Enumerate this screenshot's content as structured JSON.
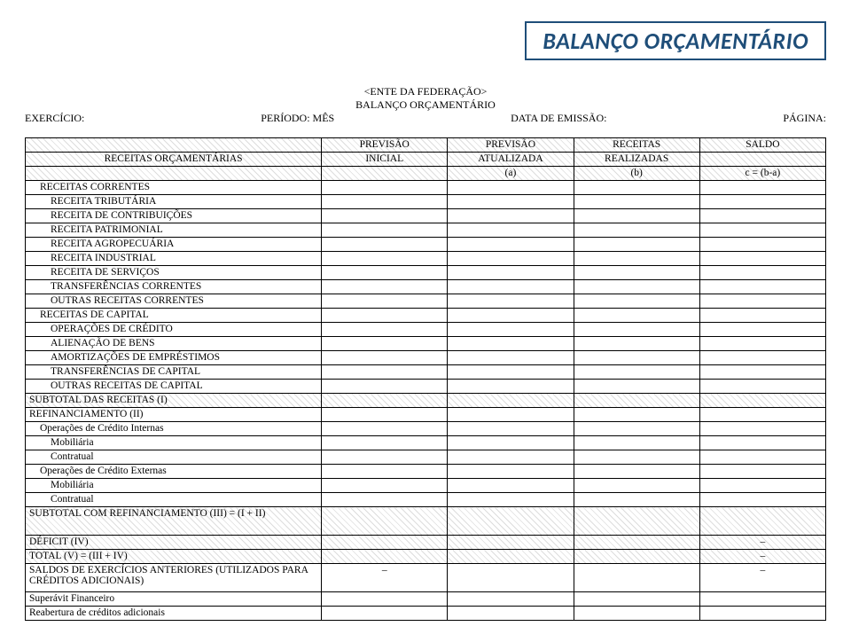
{
  "title_bar": "BALANÇO ORÇAMENTÁRIO",
  "center_head": {
    "line1": "<ENTE DA FEDERAÇÃO>",
    "line2": "BALANÇO ORÇAMENTÁRIO",
    "line3_left": "EXERCÍCIO:",
    "line3_mid": "PERÍODO: MÊS",
    "line3_center": "DATA DE EMISSÃO:",
    "line3_right": "PÁGINA:"
  },
  "header": {
    "col0_l1": "",
    "col0_l2": "RECEITAS ORÇAMENTÁRIAS",
    "col0_l3": "",
    "col1_l1": "PREVISÃO",
    "col1_l2": "INICIAL",
    "col1_l3": "",
    "col2_l1": "PREVISÃO",
    "col2_l2": "ATUALIZADA",
    "col2_l3": "(a)",
    "col3_l1": "RECEITAS",
    "col3_l2": "REALIZADAS",
    "col3_l3": "(b)",
    "col4_l1": "SALDO",
    "col4_l2": "",
    "col4_l3": "c = (b-a)"
  },
  "rows": [
    {
      "label": "RECEITAS CORRENTES",
      "indent": 1
    },
    {
      "label": "RECEITA TRIBUTÁRIA",
      "indent": 2
    },
    {
      "label": "RECEITA DE CONTRIBUIÇÕES",
      "indent": 2
    },
    {
      "label": "RECEITA PATRIMONIAL",
      "indent": 2
    },
    {
      "label": "RECEITA AGROPECUÁRIA",
      "indent": 2
    },
    {
      "label": "RECEITA INDUSTRIAL",
      "indent": 2
    },
    {
      "label": "RECEITA DE SERVIÇOS",
      "indent": 2
    },
    {
      "label": "TRANSFERÊNCIAS CORRENTES",
      "indent": 2
    },
    {
      "label": "OUTRAS RECEITAS CORRENTES",
      "indent": 2
    },
    {
      "label": "RECEITAS DE CAPITAL",
      "indent": 1
    },
    {
      "label": "OPERAÇÕES DE CRÉDITO",
      "indent": 2
    },
    {
      "label": "ALIENAÇÃO DE BENS",
      "indent": 2
    },
    {
      "label": "AMORTIZAÇÕES DE EMPRÉSTIMOS",
      "indent": 2
    },
    {
      "label": "TRANSFERÊNCIAS DE CAPITAL",
      "indent": 2
    },
    {
      "label": "OUTRAS RECEITAS DE CAPITAL",
      "indent": 2
    },
    {
      "label": "SUBTOTAL DAS RECEITAS (I)",
      "indent": 0,
      "hatch": true
    },
    {
      "label": "REFINANCIAMENTO (II)",
      "indent": 0
    },
    {
      "label": "Operações de Crédito Internas",
      "indent": 1
    },
    {
      "label": "Mobiliária",
      "indent": 2
    },
    {
      "label": "Contratual",
      "indent": 2
    },
    {
      "label": "Operações de Crédito Externas",
      "indent": 1
    },
    {
      "label": "Mobiliária",
      "indent": 2
    },
    {
      "label": "Contratual",
      "indent": 2
    },
    {
      "label": "SUBTOTAL COM REFINANCIAMENTO (III) = (I + II)",
      "indent": 0,
      "hatch": true,
      "tall": true
    },
    {
      "label": "DÉFICIT (IV)",
      "indent": 0,
      "hatch": true,
      "v4": "–"
    },
    {
      "label": "TOTAL (V) = (III + IV)",
      "indent": 0,
      "hatch": true,
      "v4": "–"
    },
    {
      "label": "SALDOS DE EXERCÍCIOS ANTERIORES (UTILIZADOS PARA CRÉDITOS ADICIONAIS)",
      "indent": 0,
      "tall": true,
      "v1": "–",
      "v4": "–"
    },
    {
      "label": "Superávit Financeiro",
      "indent": 0
    },
    {
      "label": "Reabertura de créditos adicionais",
      "indent": 0
    }
  ]
}
